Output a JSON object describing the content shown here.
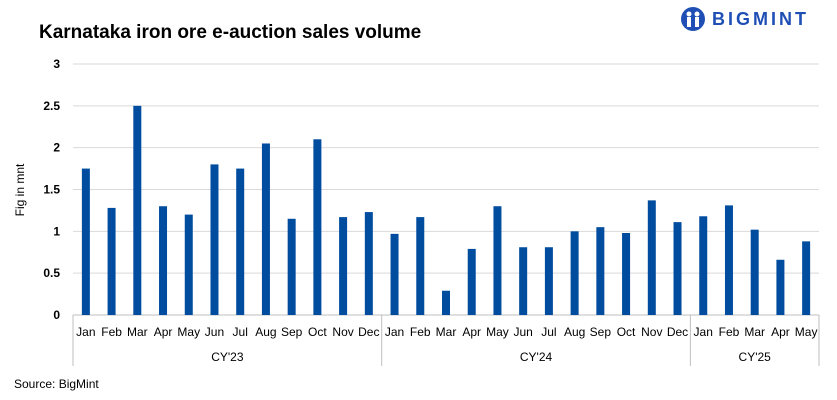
{
  "chart_data": {
    "type": "bar",
    "title": "Karnataka iron ore e-auction sales volume",
    "ylabel": "Fig in mnt",
    "xlabel": "",
    "ylim": [
      0,
      3
    ],
    "yticks": [
      "0",
      "0.5",
      "1",
      "1.5",
      "2",
      "2.5",
      "3"
    ],
    "grid": true,
    "bar_color": "#004c9e",
    "groups": [
      {
        "label": "CY'23",
        "categories": [
          "Jan",
          "Feb",
          "Mar",
          "Apr",
          "May",
          "Jun",
          "Jul",
          "Aug",
          "Sep",
          "Oct",
          "Nov",
          "Dec"
        ],
        "values": [
          1.75,
          1.28,
          2.5,
          1.3,
          1.2,
          1.8,
          1.75,
          2.05,
          1.15,
          2.1,
          1.17,
          1.23
        ]
      },
      {
        "label": "CY'24",
        "categories": [
          "Jan",
          "Feb",
          "Mar",
          "Apr",
          "May",
          "Jun",
          "Jul",
          "Aug",
          "Sep",
          "Oct",
          "Nov",
          "Dec"
        ],
        "values": [
          0.97,
          1.17,
          0.29,
          0.79,
          1.3,
          0.81,
          0.81,
          1.0,
          1.05,
          0.98,
          1.37,
          1.11
        ]
      },
      {
        "label": "CY'25",
        "categories": [
          "Jan",
          "Feb",
          "Mar",
          "Apr",
          "May"
        ],
        "values": [
          1.18,
          1.31,
          1.02,
          0.66,
          0.88
        ]
      }
    ]
  },
  "logo": {
    "text": "BIGMINT",
    "color": "#1f4fb5"
  },
  "source": "Source: BigMint"
}
